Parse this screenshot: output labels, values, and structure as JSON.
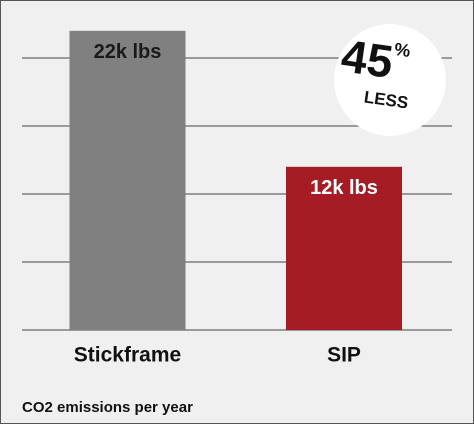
{
  "chart_data": {
    "type": "bar",
    "categories": [
      "Stickframe",
      "SIP"
    ],
    "values": [
      22000,
      12000
    ],
    "value_labels": [
      "22k lbs",
      "12k lbs"
    ],
    "colors": [
      "#808080",
      "#a51c24"
    ],
    "label_colors": [
      "#1a1a1a",
      "#ffffff"
    ],
    "ylim": [
      0,
      24000
    ],
    "yticks": [
      0,
      5000,
      10000,
      15000,
      20000
    ],
    "grid": true,
    "annotation": {
      "number": "45",
      "unit": "%",
      "word": "LESS"
    },
    "caption": "CO2 emissions per year"
  }
}
